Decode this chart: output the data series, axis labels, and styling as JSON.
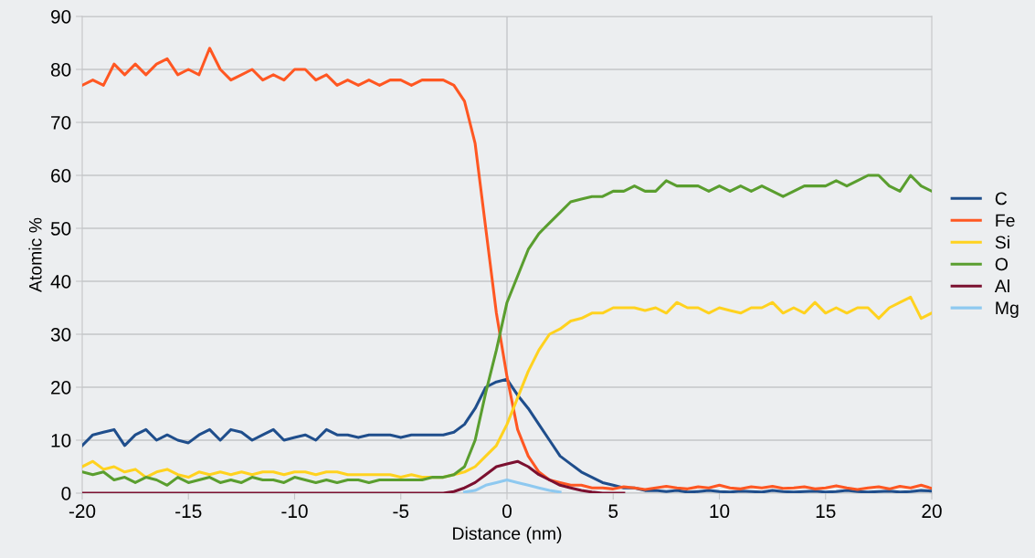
{
  "chart_data": {
    "type": "line",
    "xlabel": "Distance (nm)",
    "ylabel": "Atomic %",
    "xlim": [
      -20,
      20
    ],
    "xticks": [
      -20,
      -15,
      -10,
      -5,
      0,
      5,
      10,
      15,
      20
    ],
    "ylim": [
      0,
      90
    ],
    "yticks": [
      0,
      10,
      20,
      30,
      40,
      50,
      60,
      70,
      80,
      90
    ],
    "grid": "y",
    "legend": "right",
    "marker": "none",
    "line_style": "solid",
    "ref_lines": [
      {
        "axis": "x",
        "value": 0,
        "color": "#c4c6c8"
      }
    ],
    "x": [
      -20,
      -19.5,
      -19,
      -18.5,
      -18,
      -17.5,
      -17,
      -16.5,
      -16,
      -15.5,
      -15,
      -14.5,
      -14,
      -13.5,
      -13,
      -12.5,
      -12,
      -11.5,
      -11,
      -10.5,
      -10,
      -9.5,
      -9,
      -8.5,
      -8,
      -7.5,
      -7,
      -6.5,
      -6,
      -5.5,
      -5,
      -4.5,
      -4,
      -3.5,
      -3,
      -2.5,
      -2,
      -1.5,
      -1,
      -0.5,
      0,
      0.5,
      1,
      1.5,
      2,
      2.5,
      3,
      3.5,
      4,
      4.5,
      5,
      5.5,
      6,
      6.5,
      7,
      7.5,
      8,
      8.5,
      9,
      9.5,
      10,
      10.5,
      11,
      11.5,
      12,
      12.5,
      13,
      13.5,
      14,
      14.5,
      15,
      15.5,
      16,
      16.5,
      17,
      17.5,
      18,
      18.5,
      19,
      19.5,
      20
    ],
    "series": [
      {
        "name": "C",
        "color": "#1f4e8c",
        "values": [
          9,
          11,
          11.5,
          12,
          9,
          11,
          12,
          10,
          11,
          10,
          9.5,
          11,
          12,
          10,
          12,
          11.5,
          10,
          11,
          12,
          10,
          10.5,
          11,
          10,
          12,
          11,
          11,
          10.5,
          11,
          11,
          11,
          10.5,
          11,
          11,
          11,
          11,
          11.5,
          13,
          16,
          20,
          21,
          21.5,
          18.5,
          16,
          13,
          10,
          7,
          5.5,
          4,
          3,
          2,
          1.5,
          1,
          1,
          0.5,
          0.5,
          0.3,
          0.5,
          0.2,
          0.3,
          0.5,
          0.3,
          0.2,
          0.4,
          0.3,
          0.2,
          0.5,
          0.3,
          0.2,
          0.3,
          0.4,
          0.2,
          0.3,
          0.5,
          0.3,
          0.2,
          0.3,
          0.4,
          0.2,
          0.3,
          0.5,
          0.4
        ]
      },
      {
        "name": "Fe",
        "color": "#ff5722",
        "values": [
          77,
          78,
          77,
          81,
          79,
          81,
          79,
          81,
          82,
          79,
          80,
          79,
          84,
          80,
          78,
          79,
          80,
          78,
          79,
          78,
          80,
          80,
          78,
          79,
          77,
          78,
          77,
          78,
          77,
          78,
          78,
          77,
          78,
          78,
          78,
          77,
          74,
          66,
          50,
          34,
          22,
          12,
          7,
          4,
          2.5,
          2,
          1.5,
          1.5,
          1,
          1,
          0.8,
          1.2,
          1,
          0.7,
          1,
          1.3,
          1,
          0.8,
          1.2,
          1,
          1.5,
          1,
          0.8,
          1.2,
          1,
          1.3,
          0.9,
          1,
          1.2,
          0.8,
          1,
          1.4,
          1,
          0.7,
          1,
          1.2,
          0.8,
          1.3,
          1,
          1.5,
          0.9
        ]
      },
      {
        "name": "Si",
        "color": "#ffd21f",
        "values": [
          5,
          6,
          4.5,
          5,
          4,
          4.5,
          3,
          4,
          4.5,
          3.5,
          3,
          4,
          3.5,
          4,
          3.5,
          4,
          3.5,
          4,
          4,
          3.5,
          4,
          4,
          3.5,
          4,
          4,
          3.5,
          3.5,
          3.5,
          3.5,
          3.5,
          3,
          3.5,
          3,
          3,
          3,
          3.5,
          4,
          5,
          7,
          9,
          13,
          18,
          23,
          27,
          30,
          31,
          32.5,
          33,
          34,
          34,
          35,
          35,
          35,
          34.5,
          35,
          34,
          36,
          35,
          35,
          34,
          35,
          34.5,
          34,
          35,
          35,
          36,
          34,
          35,
          34,
          36,
          34,
          35,
          34,
          35,
          35,
          33,
          35,
          36,
          37,
          33,
          34
        ]
      },
      {
        "name": "O",
        "color": "#5a9e2f",
        "values": [
          4,
          3.5,
          4,
          2.5,
          3,
          2,
          3,
          2.5,
          1.5,
          3,
          2,
          2.5,
          3,
          2,
          2.5,
          2,
          3,
          2.5,
          2.5,
          2,
          3,
          2.5,
          2,
          2.5,
          2,
          2.5,
          2.5,
          2,
          2.5,
          2.5,
          2.5,
          2.5,
          2.5,
          3,
          3,
          3.5,
          5,
          10,
          19,
          27,
          36,
          41,
          46,
          49,
          51,
          53,
          55,
          55.5,
          56,
          56,
          57,
          57,
          58,
          57,
          57,
          59,
          58,
          58,
          58,
          57,
          58,
          57,
          58,
          57,
          58,
          57,
          56,
          57,
          58,
          58,
          58,
          59,
          58,
          59,
          60,
          60,
          58,
          57,
          60,
          58,
          57
        ]
      },
      {
        "name": "Al",
        "color": "#7b1030",
        "values": [
          0,
          0,
          0,
          0,
          0,
          0,
          0,
          0,
          0,
          0,
          0,
          0,
          0,
          0,
          0,
          0,
          0,
          0,
          0,
          0,
          0,
          0,
          0,
          0,
          0,
          0,
          0,
          0,
          0,
          0,
          0,
          0,
          0,
          0,
          0,
          0.3,
          1,
          2,
          3.5,
          5,
          5.5,
          6,
          5,
          3.5,
          2.5,
          1.5,
          1,
          0.5,
          0.2,
          0,
          0,
          0,
          null,
          null,
          null,
          null,
          null,
          null,
          null,
          null,
          null,
          null,
          null,
          null,
          null,
          null,
          null,
          null,
          null,
          null,
          null,
          null,
          null,
          null,
          null,
          null,
          null,
          null,
          null,
          null,
          null
        ]
      },
      {
        "name": "Mg",
        "color": "#8ec9f0",
        "values": [
          null,
          null,
          null,
          null,
          null,
          null,
          null,
          null,
          null,
          null,
          null,
          null,
          null,
          null,
          null,
          null,
          null,
          null,
          null,
          null,
          null,
          null,
          null,
          null,
          null,
          null,
          null,
          null,
          null,
          null,
          null,
          null,
          null,
          null,
          null,
          null,
          0.2,
          0.5,
          1.5,
          2,
          2.5,
          2,
          1.5,
          1,
          0.5,
          0.2,
          null,
          null,
          null,
          null,
          null,
          null,
          null,
          null,
          null,
          null,
          null,
          null,
          null,
          null,
          null,
          null,
          null,
          null,
          null,
          null,
          null,
          null,
          null,
          null,
          null,
          null,
          null,
          null,
          null,
          null,
          null,
          null,
          null,
          null,
          null
        ]
      }
    ]
  }
}
